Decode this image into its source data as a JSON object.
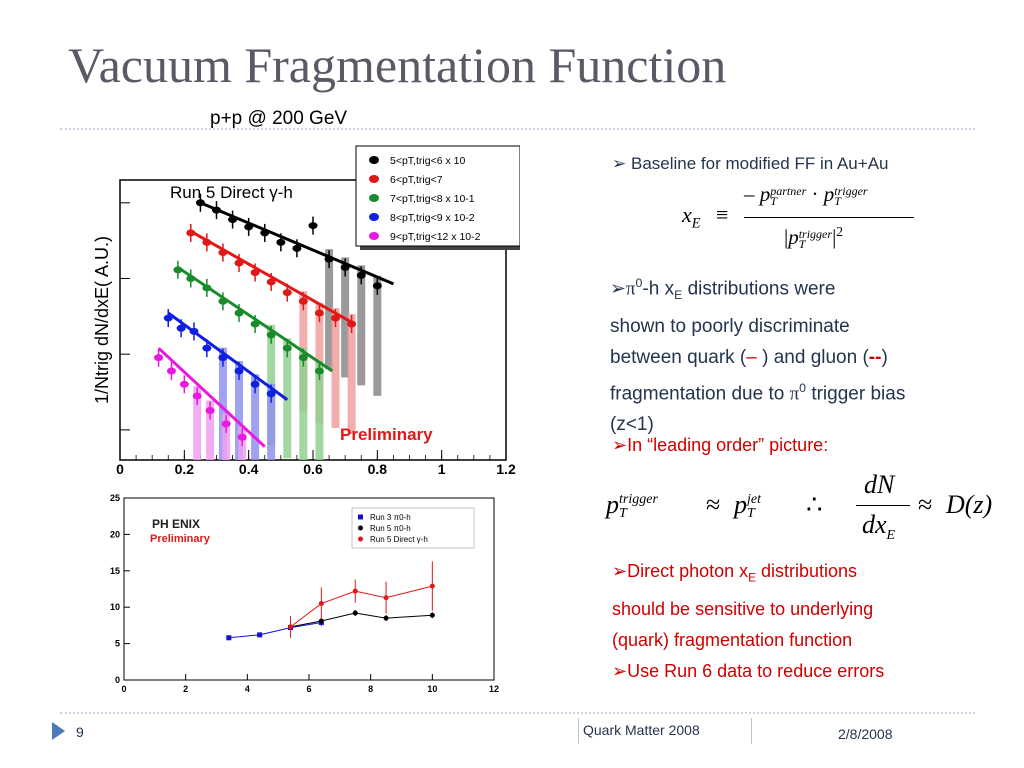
{
  "slide": {
    "title": "Vacuum Fragmentation Function",
    "subtitle": "p+p @ 200 GeV",
    "page_number": "9",
    "footer_center": "Quark Matter 2008",
    "footer_date": "2/8/2008"
  },
  "bullets": {
    "b1": "Baseline for modified FF in Au+Au",
    "b2_pi": "π",
    "b2_sup": "0",
    "b2_a": "-h x",
    "b2_sub": "E",
    "b2_b": " distributions were",
    "b2_line2": "shown to poorly discriminate",
    "b2_line3a": "between quark (",
    "b2_dash1": "–",
    "b2_line3b": " ) and gluon (",
    "b2_dash2": "--",
    "b2_line3c": ")",
    "b2_line4a": "fragmentation due to ",
    "b2_line4_pi": "π",
    "b2_line4_sup": "0",
    "b2_line4b": " trigger bias",
    "b2_line5": "(z<1)",
    "b3": "In “leading order” picture:",
    "b4a": "Direct photon x",
    "b4_sub": "E",
    "b4b": " distributions",
    "b4_line2": "should be sensitive to underlying",
    "b4_line3": "(quark) fragmentation function",
    "b5": "Use Run 6 data to reduce errors"
  },
  "equations": {
    "xe_lhs": "x",
    "xe_lhs_sub": "E",
    "xe_equiv": "≡",
    "xe_num": "– p",
    "xe_num_sup1": "partner",
    "xe_num_sub1": "T",
    "xe_dot": "·",
    "xe_num2": "p",
    "xe_num_sup2": "trigger",
    "xe_num_sub2": "T",
    "xe_den": "p",
    "xe_den_sup": "trigger",
    "xe_den_sub": "T",
    "xe_den_pow": "2",
    "lo_p1": "p",
    "lo_p1_sup": "trigger",
    "lo_p1_sub": "T",
    "lo_approx1": "≈",
    "lo_p2": "p",
    "lo_p2_sup": "jet",
    "lo_p2_sub": "T",
    "lo_therefore": "∴",
    "lo_dN": "dN",
    "lo_dx": "dx",
    "lo_dx_sub": "E",
    "lo_approx2": "≈",
    "lo_D": "D(z)"
  },
  "chart_data": [
    {
      "type": "scatter",
      "title": "Run 5 Direct γ-h",
      "ylabel": "1/Ntrig dN/dxE( A.U.)",
      "xlabel": "",
      "xlim": [
        0,
        1.2
      ],
      "x_ticks": [
        "0",
        "0.2",
        "0.4",
        "0.6",
        "0.8",
        "1",
        "1.2"
      ],
      "yscale": "log",
      "y_tick_labels": [],
      "annotation": "Preliminary",
      "legend_position": "top-right",
      "series": [
        {
          "name": "5<pT,trig<6 x 10",
          "color": "#000000",
          "x": [
            0.25,
            0.3,
            0.35,
            0.4,
            0.45,
            0.5,
            0.55,
            0.6,
            0.65,
            0.7,
            0.75,
            0.8
          ],
          "y": [
            1.0,
            0.8,
            0.6,
            0.48,
            0.4,
            0.3,
            0.25,
            0.5,
            0.18,
            0.14,
            0.11,
            0.08
          ],
          "fit": [
            [
              0.25,
              1.0
            ],
            [
              0.85,
              0.085
            ]
          ]
        },
        {
          "name": "6<pT,trig<7",
          "color": "#e01818",
          "x": [
            0.22,
            0.27,
            0.32,
            0.37,
            0.42,
            0.47,
            0.52,
            0.57,
            0.62,
            0.67,
            0.72
          ],
          "y": [
            0.4,
            0.3,
            0.22,
            0.16,
            0.12,
            0.09,
            0.065,
            0.05,
            0.035,
            0.03,
            0.025
          ],
          "fit": [
            [
              0.22,
              0.42
            ],
            [
              0.73,
              0.025
            ]
          ]
        },
        {
          "name": "7<pT,trig<8 x 10-1",
          "color": "#1a8a2a",
          "x": [
            0.18,
            0.22,
            0.27,
            0.32,
            0.37,
            0.42,
            0.47,
            0.52,
            0.57,
            0.62
          ],
          "y": [
            0.13,
            0.1,
            0.075,
            0.05,
            0.035,
            0.025,
            0.018,
            0.012,
            0.009,
            0.006
          ],
          "fit": [
            [
              0.18,
              0.14
            ],
            [
              0.66,
              0.006
            ]
          ]
        },
        {
          "name": "8<pT,trig<9 x 10-2",
          "color": "#1020e0",
          "x": [
            0.15,
            0.19,
            0.23,
            0.27,
            0.32,
            0.37,
            0.42,
            0.47
          ],
          "y": [
            0.03,
            0.022,
            0.02,
            0.012,
            0.009,
            0.006,
            0.004,
            0.003
          ],
          "fit": [
            [
              0.15,
              0.035
            ],
            [
              0.52,
              0.0025
            ]
          ]
        },
        {
          "name": "9<pT,trig<12 x 10-2",
          "color": "#e818e0",
          "x": [
            0.12,
            0.16,
            0.2,
            0.24,
            0.28,
            0.33,
            0.38
          ],
          "y": [
            0.009,
            0.006,
            0.004,
            0.0028,
            0.0018,
            0.0012,
            0.0008
          ],
          "fit": [
            [
              0.12,
              0.012
            ],
            [
              0.45,
              0.0006
            ]
          ]
        }
      ]
    },
    {
      "type": "line",
      "title": "",
      "xlabel": "",
      "ylabel": "",
      "xlim": [
        0,
        12
      ],
      "ylim": [
        0,
        25
      ],
      "x_ticks": [
        "0",
        "2",
        "4",
        "6",
        "8",
        "10",
        "12"
      ],
      "y_ticks": [
        "0",
        "5",
        "10",
        "15",
        "20",
        "25"
      ],
      "logo": "PH ENIX",
      "annotation": "Preliminary",
      "legend_position": "top-right",
      "series": [
        {
          "name": "Run 3 π0-h",
          "color": "#1010d0",
          "marker": "square",
          "x": [
            3.4,
            4.4,
            5.4,
            6.4
          ],
          "y": [
            5.8,
            6.2,
            7.2,
            7.9
          ],
          "err": [
            0.2,
            0.2,
            0.3,
            0.5
          ]
        },
        {
          "name": "Run 5 π0-h",
          "color": "#000000",
          "marker": "circle",
          "x": [
            5.4,
            6.4,
            7.5,
            8.5,
            10.0
          ],
          "y": [
            7.3,
            8.1,
            9.2,
            8.5,
            8.9
          ],
          "err": [
            0.3,
            0.4,
            0.4,
            0.4,
            0.4
          ]
        },
        {
          "name": "Run 5 Direct γ-h",
          "color": "#e01818",
          "marker": "circle",
          "x": [
            5.4,
            6.4,
            7.5,
            8.5,
            10.0
          ],
          "y": [
            7.3,
            10.5,
            12.2,
            11.3,
            12.9
          ],
          "err": [
            1.5,
            2.2,
            1.6,
            2.2,
            3.4
          ]
        }
      ]
    }
  ]
}
